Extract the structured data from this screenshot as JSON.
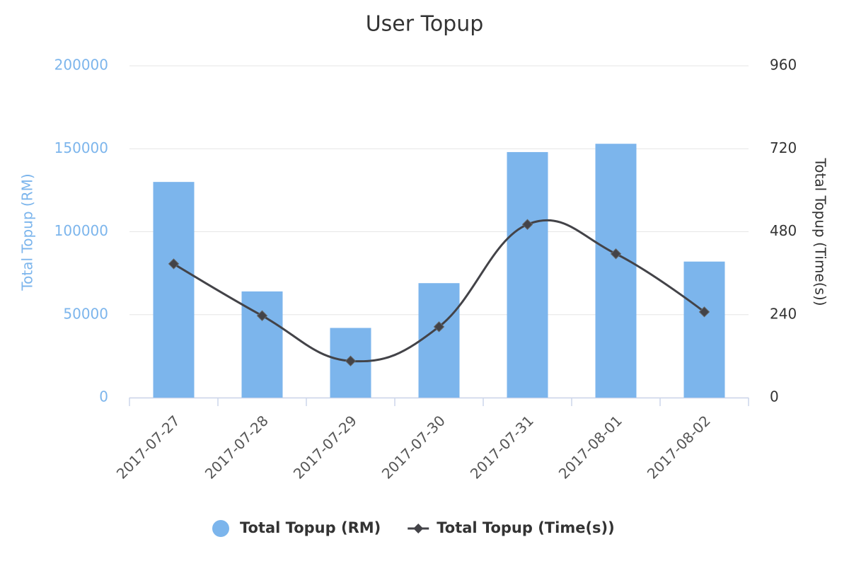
{
  "chart_data": {
    "type": "combo",
    "title": "User Topup",
    "categories": [
      "2017-07-27",
      "2017-07-28",
      "2017-07-29",
      "2017-07-30",
      "2017-07-31",
      "2017-08-01",
      "2017-08-02"
    ],
    "series": [
      {
        "name": "Total Topup (RM)",
        "type": "bar",
        "color": "#7cb5ec",
        "values": [
          130000,
          64000,
          42000,
          69000,
          148000,
          153000,
          82000
        ]
      },
      {
        "name": "Total Topup (Time(s))",
        "type": "spline",
        "color": "#434348",
        "axis": "y2",
        "values": [
          387,
          237,
          106,
          205,
          501,
          416,
          248
        ]
      }
    ],
    "ylabel": "Total Topup (RM)",
    "y2label": "Total Topup (Time(s))",
    "ylim": [
      0,
      200000
    ],
    "yticks": [
      0,
      50000,
      100000,
      150000,
      200000
    ],
    "y2lim": [
      0,
      960
    ],
    "y2ticks": [
      0,
      240,
      480,
      720,
      960
    ],
    "grid": true,
    "legend": "bottom"
  }
}
